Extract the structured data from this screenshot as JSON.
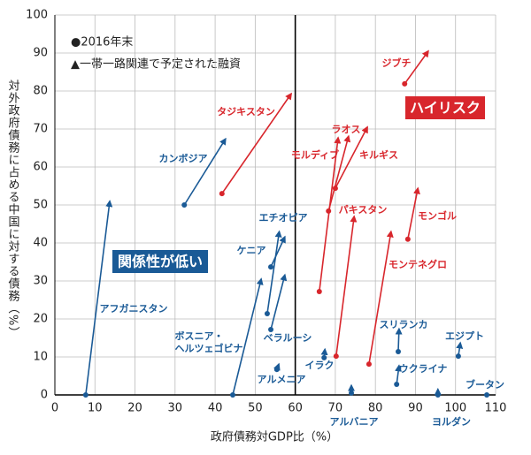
{
  "chart_data": {
    "type": "arrow-scatter",
    "x_label": "政府債務対GDP比（%）",
    "y_label": "対外政府債務に占める中国に対する債務（%）",
    "legend": [
      "●2016年末",
      "▲一帯一路関連で予定された融資"
    ],
    "annotations": [
      {
        "text": "ハイリスク",
        "color": "#d8262c"
      },
      {
        "text": "関係性が低い",
        "color": "#1a5a96"
      }
    ],
    "xlim": [
      0,
      110
    ],
    "xticks": [
      0,
      10,
      20,
      30,
      40,
      50,
      60,
      70,
      80,
      90,
      100,
      110
    ],
    "ylim": [
      0,
      100
    ],
    "yticks": [
      0,
      10,
      20,
      30,
      40,
      50,
      60,
      70,
      80,
      90,
      100
    ],
    "grid": true,
    "reference_x": 60,
    "points": [
      {
        "name": "アフガニスタン",
        "color": "#1a5a96",
        "x": [
          7.7,
          13.7
        ],
        "y": [
          0,
          51
        ]
      },
      {
        "name": "カンボジア",
        "color": "#1a5a96",
        "x": [
          32.3,
          42.6
        ],
        "y": [
          50,
          67.4
        ]
      },
      {
        "name": "タジキスタン",
        "color": "#d8262c",
        "x": [
          41.7,
          59
        ],
        "y": [
          53,
          79.3
        ]
      },
      {
        "name": "エチオピア",
        "color": "#1a5a96",
        "x": [
          53,
          56
        ],
        "y": [
          21.4,
          43
        ]
      },
      {
        "name": "ケニア",
        "color": "#1a5a96",
        "x": [
          53.9,
          57.4
        ],
        "y": [
          33.7,
          41.6
        ]
      },
      {
        "name": "ベラルーシ",
        "color": "#1a5a96",
        "x": [
          53.9,
          57.4
        ],
        "y": [
          17.2,
          31.6
        ]
      },
      {
        "name": "ボスニア・\nヘルツェゴビナ",
        "color": "#1a5a96",
        "x": [
          44.4,
          51.5
        ],
        "y": [
          0,
          30.5
        ]
      },
      {
        "name": "アルメニア",
        "color": "#1a5a96",
        "x": [
          55.4,
          55.9
        ],
        "y": [
          6.7,
          8.1
        ]
      },
      {
        "name": "イラク",
        "color": "#1a5a96",
        "x": [
          67.2,
          67.4
        ],
        "y": [
          9.8,
          12
        ]
      },
      {
        "name": "アルバニア",
        "color": "#1a5a96",
        "x": [
          74,
          74
        ],
        "y": [
          0.5,
          2.5
        ]
      },
      {
        "name": "ラオス",
        "color": "#d8262c",
        "x": [
          68.3,
          73.3
        ],
        "y": [
          48.4,
          68.1
        ]
      },
      {
        "name": "モルディブ",
        "color": "#d8262c",
        "x": [
          66,
          70.7
        ],
        "y": [
          27.2,
          67.7
        ]
      },
      {
        "name": "キルギス",
        "color": "#d8262c",
        "x": [
          70,
          78
        ],
        "y": [
          54.4,
          70.5
        ]
      },
      {
        "name": "パキスタン",
        "color": "#d8262c",
        "x": [
          70.2,
          74.7
        ],
        "y": [
          10.2,
          47
        ]
      },
      {
        "name": "モンテネグロ",
        "color": "#d8262c",
        "x": [
          78.4,
          83.9
        ],
        "y": [
          8.1,
          43
        ]
      },
      {
        "name": "モンゴル",
        "color": "#d8262c",
        "x": [
          88.1,
          90.6
        ],
        "y": [
          41,
          54.4
        ]
      },
      {
        "name": "ジブチ",
        "color": "#d8262c",
        "x": [
          87.3,
          93.2
        ],
        "y": [
          81.9,
          90.5
        ]
      },
      {
        "name": "スリランカ",
        "color": "#1a5a96",
        "x": [
          85.7,
          85.9
        ],
        "y": [
          11.4,
          17.4
        ]
      },
      {
        "name": "ウクライナ",
        "color": "#1a5a96",
        "x": [
          85.3,
          85.9
        ],
        "y": [
          2.8,
          7.7
        ]
      },
      {
        "name": "エジプト",
        "color": "#1a5a96",
        "x": [
          100.7,
          101.2
        ],
        "y": [
          10.2,
          13.7
        ]
      },
      {
        "name": "ヨルダン",
        "color": "#1a5a96",
        "x": [
          95.6,
          95.6
        ],
        "y": [
          0,
          1.5
        ]
      },
      {
        "name": "ブータン",
        "color": "#1a5a96",
        "x": [
          107.8
        ],
        "y": [
          0
        ]
      }
    ]
  }
}
